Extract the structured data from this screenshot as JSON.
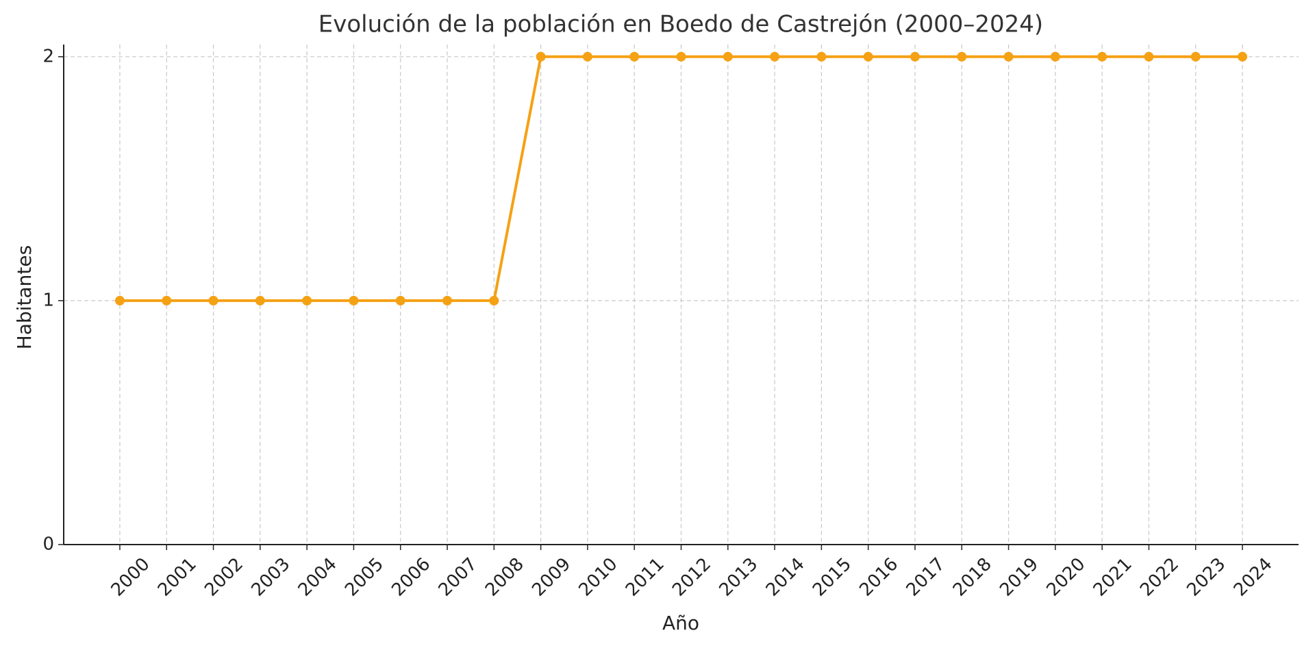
{
  "chart_data": {
    "type": "line",
    "title": "Evolución de la población en Boedo de Castrejón (2000–2024)",
    "x_label": "Año",
    "y_label": "Habitantes",
    "x": [
      2000,
      2001,
      2002,
      2003,
      2004,
      2005,
      2006,
      2007,
      2008,
      2009,
      2010,
      2011,
      2012,
      2013,
      2014,
      2015,
      2016,
      2017,
      2018,
      2019,
      2020,
      2021,
      2022,
      2023,
      2024
    ],
    "series": [
      {
        "name": "Habitantes",
        "color": "#f5a114",
        "values": [
          1,
          1,
          1,
          1,
          1,
          1,
          1,
          1,
          1,
          2,
          2,
          2,
          2,
          2,
          2,
          2,
          2,
          2,
          2,
          2,
          2,
          2,
          2,
          2,
          2
        ]
      }
    ],
    "xlim": [
      1998.8,
      2025.2
    ],
    "xticks": [
      2000,
      2001,
      2002,
      2003,
      2004,
      2005,
      2006,
      2007,
      2008,
      2009,
      2010,
      2011,
      2012,
      2013,
      2014,
      2015,
      2016,
      2017,
      2018,
      2019,
      2020,
      2021,
      2022,
      2023,
      2024
    ],
    "ylim": [
      0,
      2.05
    ],
    "yticks": [
      0,
      1,
      2
    ],
    "grid": true
  }
}
